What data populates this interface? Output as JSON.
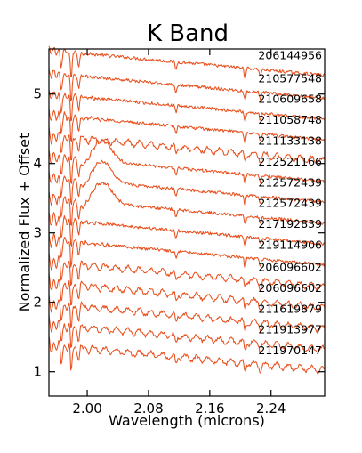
{
  "chart_data": {
    "type": "line",
    "title": "K Band",
    "xlabel": "Wavelength (microns)",
    "ylabel": "Normalized Flux + Offset",
    "xlim": [
      1.95,
      2.31
    ],
    "ylim": [
      0.65,
      5.65
    ],
    "xticks": [
      2.0,
      2.08,
      2.16,
      2.24
    ],
    "xtick_labels": [
      "2.00",
      "2.08",
      "2.16",
      "2.24"
    ],
    "yticks": [
      1,
      2,
      3,
      4,
      5
    ],
    "ytick_labels": [
      "1",
      "2",
      "3",
      "4",
      "5"
    ],
    "line_color": "#e8501e",
    "grid": false,
    "legend": "none",
    "series": [
      {
        "name": "206144956",
        "offset": 5.45,
        "type": "early"
      },
      {
        "name": "210577548",
        "offset": 5.12,
        "type": "early"
      },
      {
        "name": "210609658",
        "offset": 4.82,
        "type": "early"
      },
      {
        "name": "211058748",
        "offset": 4.52,
        "type": "mid"
      },
      {
        "name": "211133138",
        "offset": 4.22,
        "type": "late"
      },
      {
        "name": "212521166",
        "offset": 3.92,
        "type": "bump"
      },
      {
        "name": "212572439",
        "offset": 3.62,
        "type": "bump"
      },
      {
        "name": "212572439",
        "offset": 3.32,
        "type": "bump"
      },
      {
        "name": "217192839",
        "offset": 3.02,
        "type": "mid"
      },
      {
        "name": "219114906",
        "offset": 2.72,
        "type": "mid"
      },
      {
        "name": "206096602",
        "offset": 2.4,
        "type": "late"
      },
      {
        "name": "206096602",
        "offset": 2.1,
        "type": "late"
      },
      {
        "name": "211619879",
        "offset": 1.8,
        "type": "late"
      },
      {
        "name": "211913977",
        "offset": 1.5,
        "type": "late"
      },
      {
        "name": "211970147",
        "offset": 1.2,
        "type": "late"
      }
    ]
  }
}
